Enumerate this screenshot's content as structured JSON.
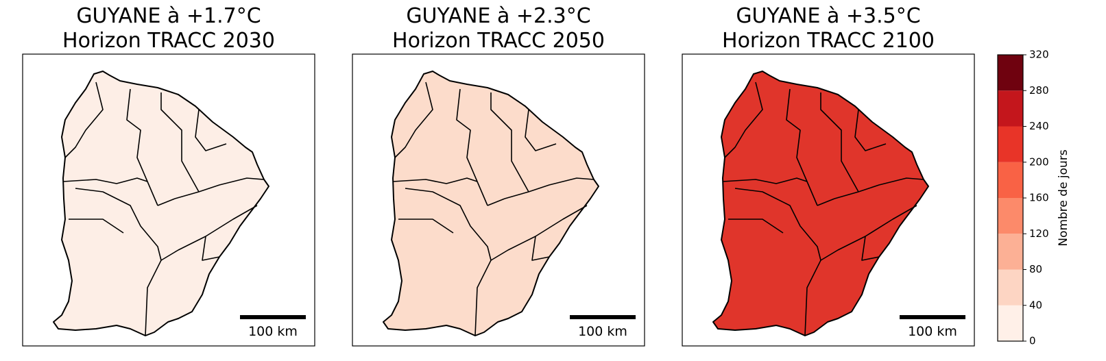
{
  "panels": [
    {
      "title_line1": "GUYANE à +1.7°C",
      "title_line2": "Horizon TRACC 2030",
      "scale_label": "100 km"
    },
    {
      "title_line1": "GUYANE à +2.3°C",
      "title_line2": "Horizon TRACC 2050",
      "scale_label": "100 km"
    },
    {
      "title_line1": "GUYANE à +3.5°C",
      "title_line2": "Horizon TRACC 2100",
      "scale_label": "100 km"
    }
  ],
  "colorbar": {
    "label": "Nombre de jours",
    "lim": [
      0,
      320
    ],
    "ticks": [
      0,
      40,
      80,
      120,
      160,
      200,
      240,
      280,
      320
    ],
    "colors": [
      "#fff0e8",
      "#fdd5c3",
      "#fcb095",
      "#fc8a6a",
      "#f96245",
      "#e83428",
      "#c4161c",
      "#6f020f"
    ]
  }
}
